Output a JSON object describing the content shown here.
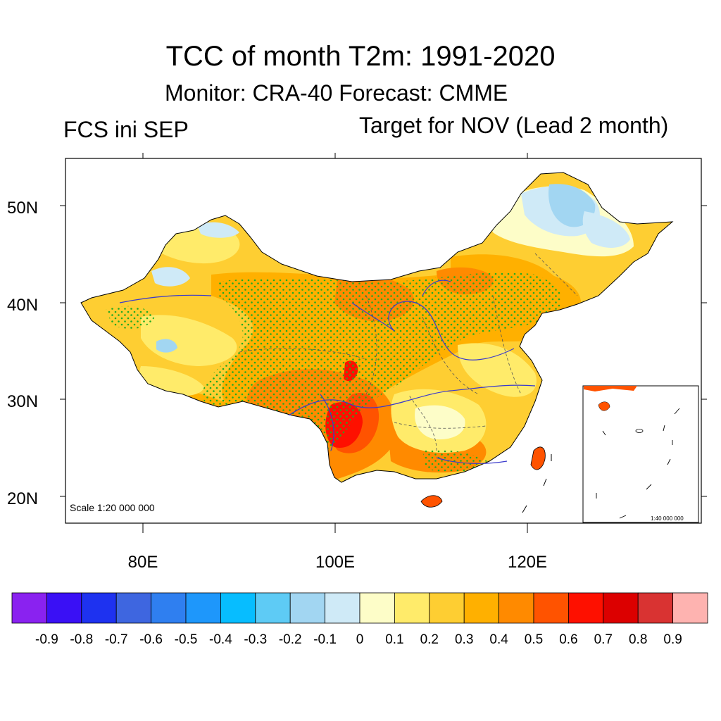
{
  "title": "TCC of month T2m: 1991-2020",
  "subtitle": "Monitor: CRA-40   Forecast: CMME",
  "left_label": "FCS ini SEP",
  "right_label": "Target for NOV (Lead 2 month)",
  "map": {
    "lat_ticks": [
      "50N",
      "40N",
      "30N",
      "20N"
    ],
    "lon_ticks": [
      "80E",
      "100E",
      "120E"
    ],
    "scale_main": "Scale 1:20 000 000",
    "scale_inset": "1:40 000 000",
    "stipple_color": "#22aa22",
    "river_color": "#3a3acc"
  },
  "colorbar": {
    "colors": [
      "#8a22f0",
      "#3a10f5",
      "#1e32f0",
      "#3e66e0",
      "#2f7ff0",
      "#1e97fb",
      "#07bdff",
      "#5ecbf5",
      "#a2d6f2",
      "#cfeaf7",
      "#fdfdc8",
      "#ffeb6a",
      "#fece32",
      "#ffb000",
      "#ff8a00",
      "#ff5300",
      "#fe1000",
      "#dc0000",
      "#d93332",
      "#feb3b0"
    ],
    "labels": [
      "-0.9",
      "-0.8",
      "-0.7",
      "-0.6",
      "-0.5",
      "-0.4",
      "-0.3",
      "-0.2",
      "-0.1",
      "0",
      "0.1",
      "0.2",
      "0.3",
      "0.4",
      "0.5",
      "0.6",
      "0.7",
      "0.8",
      "0.9"
    ]
  }
}
